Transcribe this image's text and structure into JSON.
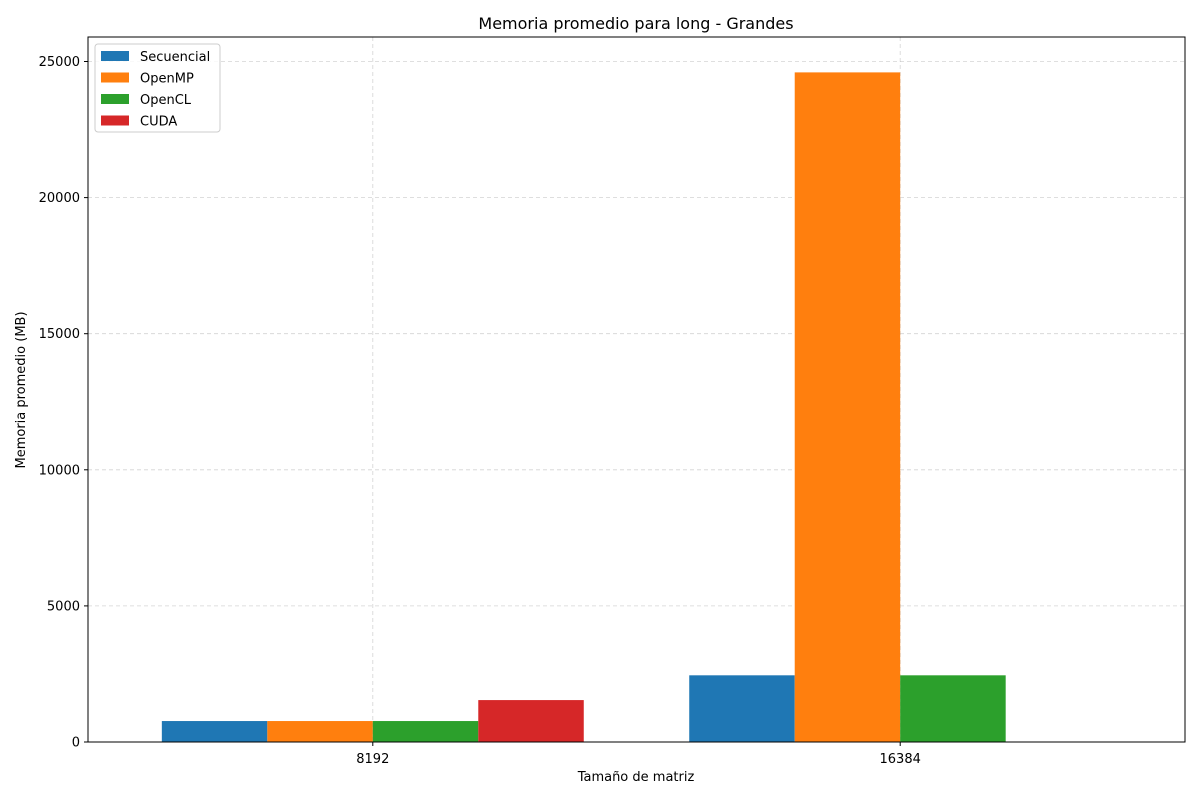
{
  "chart_data": {
    "type": "bar",
    "title": "Memoria promedio para long - Grandes",
    "xlabel": "Tamaño de matriz",
    "ylabel": "Memoria promedio (MB)",
    "categories": [
      "8192",
      "16384"
    ],
    "series": [
      {
        "name": "Secuencial",
        "color": "#1f77b4",
        "values": [
          770,
          2450
        ]
      },
      {
        "name": "OpenMP",
        "color": "#ff7f0e",
        "values": [
          770,
          24600
        ]
      },
      {
        "name": "OpenCL",
        "color": "#2ca02c",
        "values": [
          770,
          2450
        ]
      },
      {
        "name": "CUDA",
        "color": "#d62728",
        "values": [
          1540,
          null
        ]
      }
    ],
    "ylim": [
      0,
      25900
    ],
    "yticks": [
      0,
      5000,
      10000,
      15000,
      20000,
      25000
    ],
    "grid": true,
    "legend_position": "top-left"
  }
}
